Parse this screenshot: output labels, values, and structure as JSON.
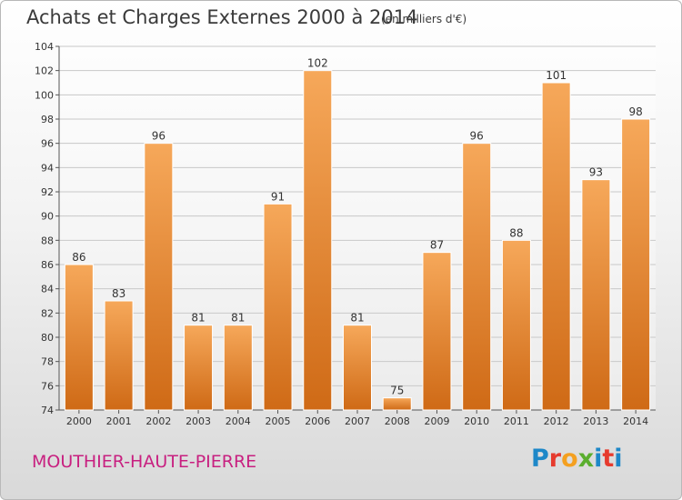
{
  "header": {
    "title": "Achats et Charges Externes 2000 à 2014",
    "subtitle": "(en milliers d'€)"
  },
  "footer": {
    "place": "MOUTHIER-HAUTE-PIERRE",
    "logo_letters": [
      "P",
      "r",
      "o",
      "x",
      "i",
      "t",
      "i"
    ],
    "logo_colors": [
      "#1e88c8",
      "#e63b2e",
      "#f4a020",
      "#5aae2e",
      "#1e88c8",
      "#e63b2e",
      "#1e88c8"
    ]
  },
  "colors": {
    "bar_top": "#f6a85a",
    "bar_bottom": "#cf6a16",
    "grid": "#c8c8c8",
    "axis_text": "#333333"
  },
  "chart_data": {
    "type": "bar",
    "categories": [
      "2000",
      "2001",
      "2002",
      "2003",
      "2004",
      "2005",
      "2006",
      "2007",
      "2008",
      "2009",
      "2010",
      "2011",
      "2012",
      "2013",
      "2014"
    ],
    "values": [
      86,
      83,
      96,
      81,
      81,
      91,
      102,
      81,
      75,
      87,
      96,
      88,
      101,
      93,
      98
    ],
    "data_labels": [
      "86",
      "83",
      "96",
      "81",
      "81",
      "91",
      "102",
      "81",
      "75",
      "87",
      "96",
      "88",
      "101",
      "93",
      "98"
    ],
    "title": "Achats et Charges Externes 2000 à 2014",
    "xlabel": "",
    "ylabel": "",
    "ylim": [
      74,
      104
    ],
    "yticks": [
      74,
      76,
      78,
      80,
      82,
      84,
      86,
      88,
      90,
      92,
      94,
      96,
      98,
      100,
      102,
      104
    ],
    "grid": true
  }
}
